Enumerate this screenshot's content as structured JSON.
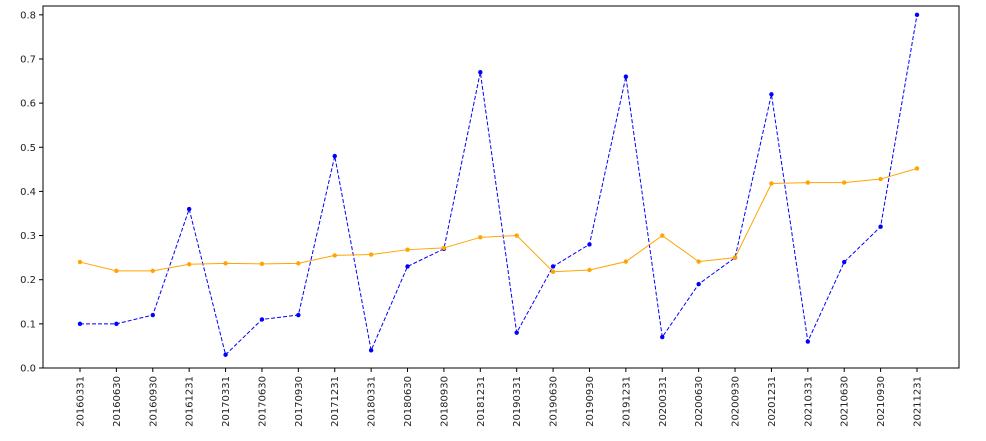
{
  "chart_data": {
    "type": "line",
    "title": "",
    "xlabel": "",
    "ylabel": "",
    "categories": [
      "20160331",
      "20160630",
      "20160930",
      "20161231",
      "20170331",
      "20170630",
      "20170930",
      "20171231",
      "20180331",
      "20180630",
      "20180930",
      "20181231",
      "20190331",
      "20190630",
      "20190930",
      "20191231",
      "20200331",
      "20200630",
      "20200930",
      "20201231",
      "20210331",
      "20210630",
      "20210930",
      "20211231"
    ],
    "ylim": [
      0,
      0.82
    ],
    "yticks": [
      0.0,
      0.1,
      0.2,
      0.3,
      0.4,
      0.5,
      0.6,
      0.7,
      0.8
    ],
    "grid": false,
    "series": [
      {
        "color": "#0000ff",
        "linestyle": "dashed",
        "values": [
          0.1,
          0.1,
          0.12,
          0.36,
          0.03,
          0.11,
          0.12,
          0.48,
          0.04,
          0.23,
          0.27,
          0.67,
          0.08,
          0.23,
          0.28,
          0.66,
          0.07,
          0.19,
          0.25,
          0.62,
          0.06,
          0.24,
          0.32,
          0.8
        ]
      },
      {
        "color": "#ffa500",
        "linestyle": "solid",
        "values": [
          0.24,
          0.22,
          0.22,
          0.235,
          0.237,
          0.236,
          0.237,
          0.255,
          0.257,
          0.268,
          0.272,
          0.296,
          0.3,
          0.218,
          0.222,
          0.241,
          0.3,
          0.241,
          0.25,
          0.418,
          0.42,
          0.42,
          0.428,
          0.452
        ]
      }
    ]
  }
}
